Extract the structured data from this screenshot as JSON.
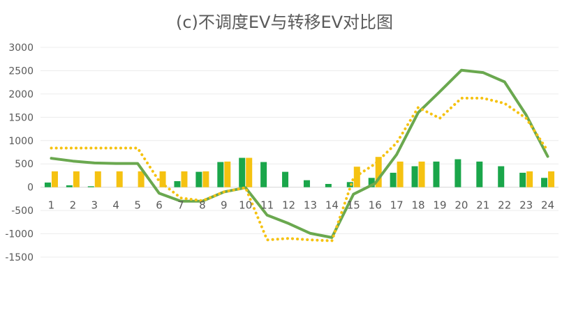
{
  "chart_data": {
    "type": "bar+line",
    "title": "(c)不调度EV与转移EV对比图",
    "xlabel": "",
    "ylabel": "",
    "categories": [
      "1",
      "2",
      "3",
      "4",
      "5",
      "6",
      "7",
      "8",
      "9",
      "10",
      "11",
      "12",
      "13",
      "14",
      "15",
      "16",
      "17",
      "18",
      "19",
      "20",
      "21",
      "22",
      "23",
      "24"
    ],
    "ylim": [
      -1500,
      3000
    ],
    "yticks": [
      3000,
      2500,
      2000,
      1500,
      1000,
      500,
      0,
      -500,
      -1000,
      -1500
    ],
    "grid": true,
    "legend": "none",
    "series": [
      {
        "kind": "bar",
        "color": "#1aa64a",
        "values": [
          100,
          40,
          20,
          0,
          0,
          0,
          130,
          330,
          540,
          630,
          540,
          330,
          150,
          70,
          110,
          200,
          310,
          450,
          550,
          600,
          550,
          450,
          310,
          200
        ]
      },
      {
        "kind": "bar",
        "color": "#f5c211",
        "values": [
          340,
          340,
          340,
          340,
          340,
          340,
          340,
          340,
          550,
          630,
          0,
          0,
          0,
          0,
          440,
          650,
          550,
          550,
          0,
          0,
          0,
          0,
          340,
          340
        ]
      },
      {
        "kind": "line",
        "style": "solid",
        "color": "#6aa84f",
        "values": [
          620,
          560,
          520,
          510,
          510,
          -130,
          -300,
          -300,
          -100,
          -10,
          -600,
          -780,
          -990,
          -1080,
          -150,
          80,
          700,
          1600,
          2050,
          2510,
          2460,
          2260,
          1550,
          660
        ]
      },
      {
        "kind": "line",
        "style": "dotted",
        "color": "#f5c211",
        "values": [
          840,
          840,
          840,
          840,
          840,
          130,
          -230,
          -290,
          -100,
          -10,
          -1130,
          -1100,
          -1130,
          -1150,
          200,
          500,
          950,
          1710,
          1480,
          1910,
          1910,
          1800,
          1480,
          780
        ]
      }
    ]
  }
}
